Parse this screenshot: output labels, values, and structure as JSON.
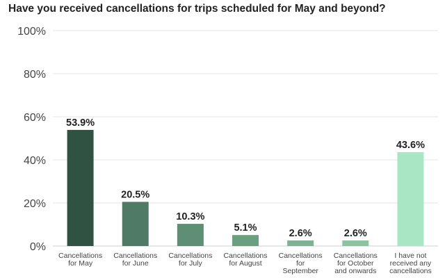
{
  "chart_data": {
    "type": "bar",
    "title": "Have you received cancellations for trips scheduled for May and beyond?",
    "xlabel": "",
    "ylabel": "",
    "ylim": [
      0,
      100
    ],
    "yticks": [
      "100%",
      "80%",
      "60%",
      "40%",
      "20%",
      "0%"
    ],
    "ytick_values": [
      100,
      80,
      60,
      40,
      20,
      0
    ],
    "grid": true,
    "legend": "none",
    "categories": [
      [
        "Cancellations",
        "for May"
      ],
      [
        "Cancellations",
        "for June"
      ],
      [
        "Cancellations",
        "for July"
      ],
      [
        "Cancellations",
        "for August"
      ],
      [
        "Cancellations",
        "for",
        "September"
      ],
      [
        "Cancellations",
        "for October",
        "and onwards"
      ],
      [
        "I have not",
        "received any",
        "cancellations"
      ]
    ],
    "values": [
      53.9,
      20.5,
      10.3,
      5.1,
      2.6,
      2.6,
      43.6
    ],
    "value_labels": [
      "53.9%",
      "20.5%",
      "10.3%",
      "5.1%",
      "2.6%",
      "2.6%",
      "43.6%"
    ],
    "colors": [
      "#2f5243",
      "#4f7b66",
      "#5e8f74",
      "#6a9f80",
      "#7eb392",
      "#8cc4a0",
      "#a8e6c4"
    ]
  }
}
